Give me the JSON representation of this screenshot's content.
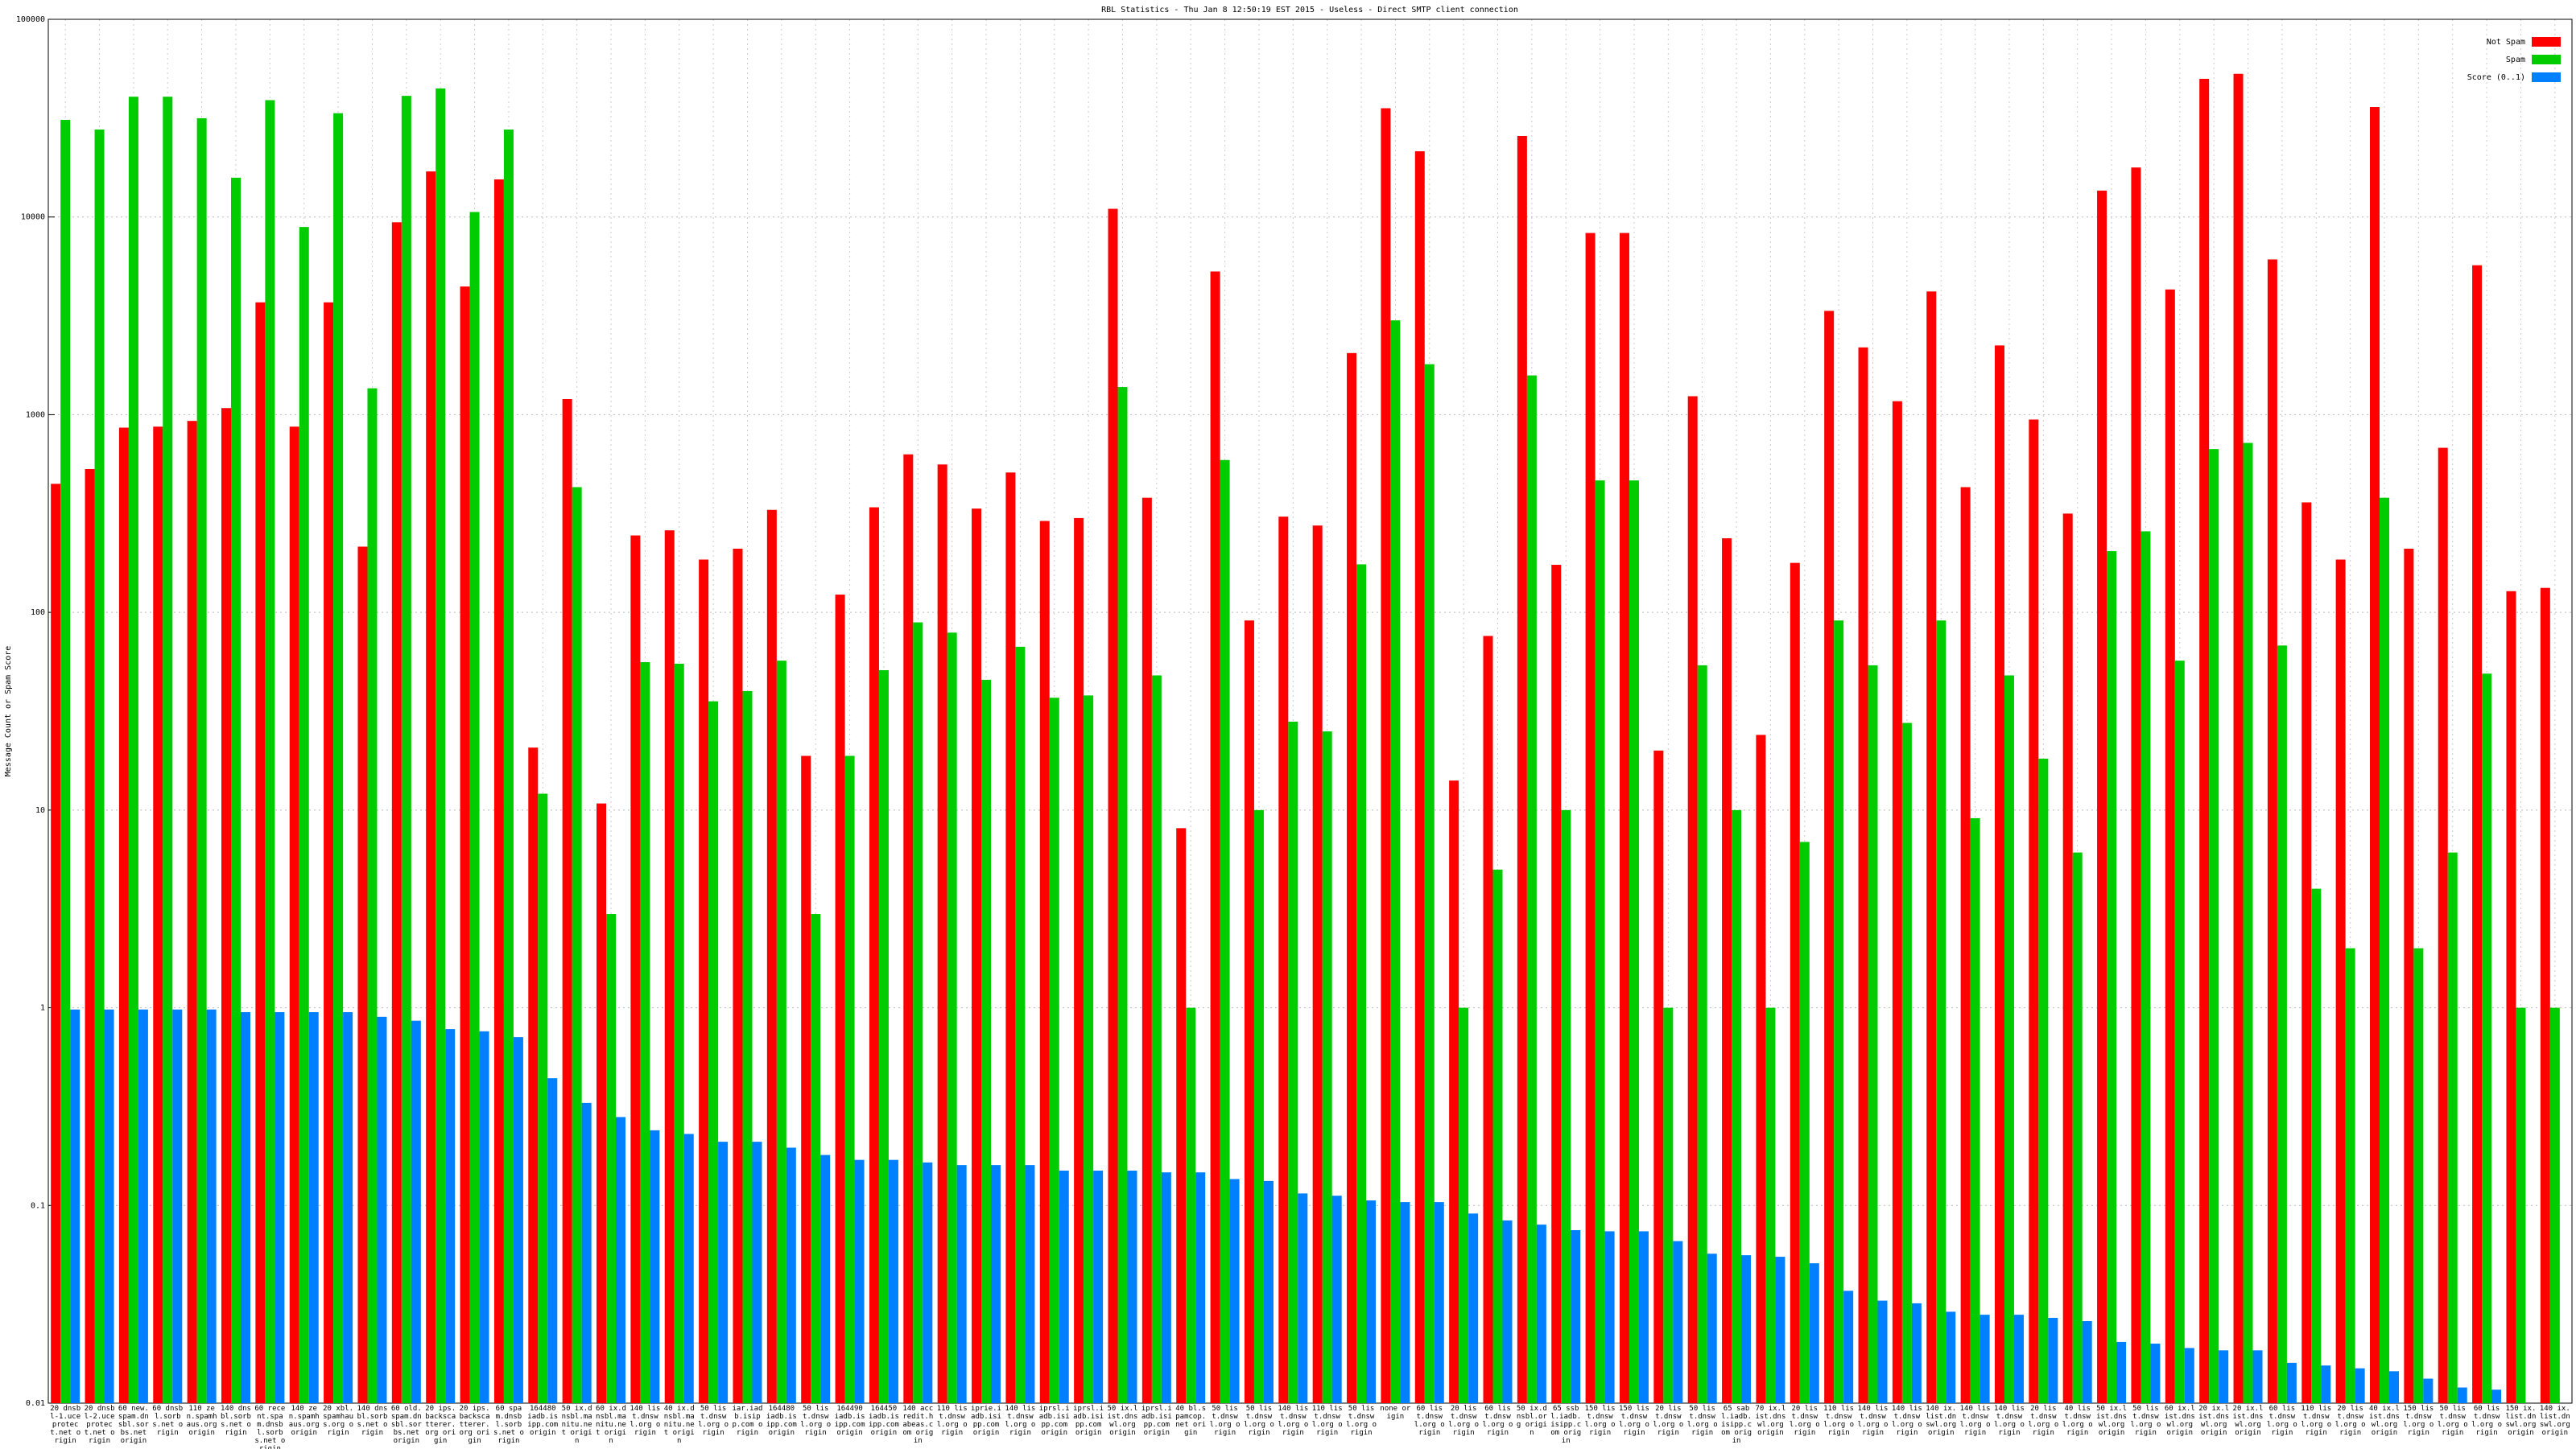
{
  "chart_data": {
    "type": "bar",
    "title": "RBL Statistics - Thu Jan  8 12:50:19 EST 2015 - Useless - Direct SMTP client connection",
    "y_label": "Message Count or Spam Score",
    "log_scale": true,
    "grid": true,
    "legend": "upper right",
    "ylim": [
      0.01,
      100000
    ],
    "yticks": [
      0.01,
      0.1,
      1,
      10,
      100,
      1000,
      10000,
      100000
    ],
    "categories": [
      "20 dnsbl-1.uceprotect.net origin",
      "20 dnsbl-2.uceprotect.net origin",
      "60 new.spam.dnsbl.sorbs.net origin",
      "60 dnsbl.sorbs.net origin",
      "110 zen.spamhaus.org origin",
      "140 dnsbl.sorbs.net origin",
      "60 recent.spam.dnsbl.sorbs.net origin",
      "140 zen.spamhaus.org origin",
      "20 xbl.spamhaus.org origin",
      "140 dnsbl.sorbs.net origin",
      "60 old.spam.dnsbl.sorbs.net origin",
      "20 ips.backscatterer.org origin",
      "20 ips.backscatterer.org origin",
      "60 spam.dnsbl.sorbs.net origin",
      "164480 iadb.isipp.com origin",
      "50 ix.dnsbl.manitu.net origin",
      "60 ix.dnsbl.manitu.net origin",
      "140 list.dnswl.org origin",
      "40 ix.dnsbl.manitu.net origin",
      "50 list.dnswl.org origin",
      "iar.iadb.isipp.com origin",
      "164480 iadb.isipp.com origin",
      "50 list.dnswl.org origin",
      "164490 iadb.isipp.com origin",
      "164450 iadb.isipp.com origin",
      "140 accredit.habeas.com origin",
      "110 list.dnswl.org origin",
      "iprie.iadb.isipp.com origin",
      "140 list.dnswl.org origin",
      "iprsl.iadb.isipp.com origin",
      "iprsl.iadb.isipp.com origin",
      "50 ix.list.dnswl.org origin",
      "iprsl.iadb.isipp.com origin",
      "40 bl.spamcop.net origin",
      "50 list.dnswl.org origin",
      "50 list.dnswl.org origin",
      "140 list.dnswl.org origin",
      "110 list.dnswl.org origin",
      "50 list.dnswl.org origin",
      "none origin",
      "60 list.dnswl.org origin",
      "20 list.dnswl.org origin",
      "60 list.dnswl.org origin",
      "50 ix.dnsbl.org origin",
      "65 ssbl.iadb.isipp.com origin",
      "150 list.dnswl.org origin",
      "150 list.dnswl.org origin",
      "20 list.dnswl.org origin",
      "50 list.dnswl.org origin",
      "65 sabl.iadb.isipp.com origin",
      "70 ix.list.dnswl.org origin",
      "20 list.dnswl.org origin",
      "110 list.dnswl.org origin",
      "140 list.dnswl.org origin",
      "140 list.dnswl.org origin",
      "140 ix.list.dnswl.org origin",
      "140 list.dnswl.org origin",
      "140 list.dnswl.org origin",
      "20 list.dnswl.org origin",
      "40 list.dnswl.org origin",
      "50 ix.list.dnswl.org origin",
      "50 list.dnswl.org origin",
      "60 ix.list.dnswl.org origin",
      "20 ix.list.dnswl.org origin",
      "20 ix.list.dnswl.org origin",
      "60 list.dnswl.org origin",
      "110 list.dnswl.org origin",
      "20 list.dnswl.org origin",
      "40 ix.list.dnswl.org origin",
      "150 list.dnswl.org origin",
      "50 list.dnswl.org origin",
      "60 list.dnswl.org origin",
      "150 ix.list.dnswl.org origin",
      "140 ix.list.dnswl.org origin"
    ],
    "series": [
      {
        "name": "Not Spam",
        "color": "#ff0000",
        "values": [
          447,
          531,
          860,
          870,
          930,
          1080,
          3700,
          870,
          3700,
          215,
          9400,
          17000,
          4450,
          15500,
          20.7,
          1200,
          10.8,
          245,
          260,
          185,
          210,
          330,
          18.8,
          123,
          340,
          630,
          560,
          335,
          510,
          290,
          300,
          11000,
          380,
          8.1,
          5300,
          91,
          305,
          275,
          2050,
          35500,
          21500,
          14.1,
          76,
          25700,
          174,
          8300,
          8300,
          20,
          1240,
          237,
          24,
          178,
          3350,
          2190,
          1170,
          4200,
          430,
          2240,
          945,
          316,
          13600,
          17800,
          4300,
          50000,
          53000,
          6100,
          360,
          185,
          36000,
          210,
          680,
          5700,
          128,
          133
        ]
      },
      {
        "name": "Spam",
        "color": "#00cc00",
        "values": [
          31000,
          27700,
          40600,
          40600,
          31600,
          15800,
          39000,
          8900,
          33500,
          1360,
          41000,
          44700,
          10600,
          27700,
          12.1,
          430,
          2.98,
          56,
          55,
          35.5,
          40,
          57,
          2.98,
          18.8,
          51,
          89,
          79,
          45.6,
          67,
          37,
          38,
          1380,
          48,
          1,
          590,
          10,
          28,
          25,
          175,
          3000,
          1800,
          1,
          5,
          1580,
          10,
          465,
          465,
          1,
          54,
          10,
          1,
          6.9,
          91,
          54,
          27.6,
          91,
          9.1,
          48,
          18.2,
          6.1,
          204,
          257,
          57,
          670,
          720,
          68,
          4,
          2,
          380,
          2,
          6.1,
          49,
          1,
          1
        ]
      },
      {
        "name": "Score (0..1)",
        "color": "#0080ff",
        "values": [
          0.98,
          0.98,
          0.98,
          0.98,
          0.98,
          0.95,
          0.95,
          0.95,
          0.95,
          0.9,
          0.86,
          0.78,
          0.76,
          0.71,
          0.44,
          0.33,
          0.28,
          0.24,
          0.23,
          0.21,
          0.21,
          0.196,
          0.18,
          0.17,
          0.17,
          0.165,
          0.16,
          0.16,
          0.16,
          0.15,
          0.15,
          0.15,
          0.147,
          0.147,
          0.136,
          0.133,
          0.115,
          0.112,
          0.106,
          0.104,
          0.104,
          0.091,
          0.084,
          0.08,
          0.075,
          0.074,
          0.074,
          0.066,
          0.057,
          0.056,
          0.055,
          0.051,
          0.037,
          0.033,
          0.032,
          0.029,
          0.028,
          0.028,
          0.027,
          0.026,
          0.0204,
          0.02,
          0.019,
          0.0185,
          0.0185,
          0.016,
          0.0155,
          0.015,
          0.0145,
          0.0133,
          0.012,
          0.0117,
          null,
          null
        ]
      }
    ]
  }
}
